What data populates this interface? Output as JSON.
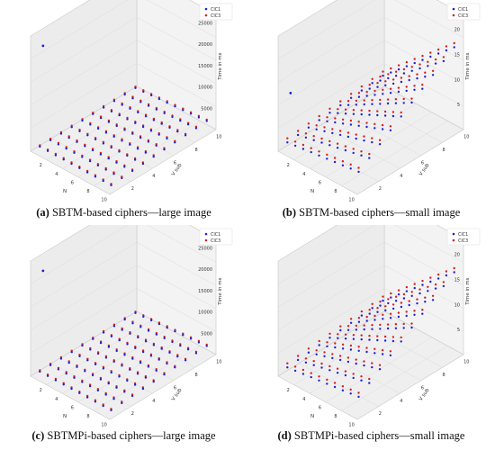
{
  "chart_data": [
    {
      "type": "scatter",
      "panel": "a",
      "caption_letter": "(a)",
      "caption_text": " SBTM-based ciphers—large image",
      "xlabel": "N",
      "ylabel": "V sub",
      "zlabel": "Time in ms",
      "xticks": [
        "2",
        "4",
        "6",
        "8",
        "10"
      ],
      "yticks": [
        "2",
        "4",
        "6",
        "8",
        "10"
      ],
      "zticks": [
        "5000",
        "10000",
        "15000",
        "20000",
        "25000"
      ],
      "zlim": [
        0,
        27000
      ],
      "legend_position": "top-right",
      "series": [
        {
          "name": "CIC1",
          "color": "#1f1fd6"
        },
        {
          "name": "CIC3",
          "color": "#d62020"
        }
      ],
      "outlier": {
        "x": 1,
        "y": 1,
        "z": 24000
      }
    },
    {
      "type": "scatter",
      "panel": "b",
      "caption_letter": "(b)",
      "caption_text": " SBTM-based ciphers—small image",
      "xlabel": "N",
      "ylabel": "V sub",
      "zlabel": "Time in ms",
      "xticks": [
        "2",
        "4",
        "6",
        "8",
        "10"
      ],
      "yticks": [
        "2",
        "4",
        "6",
        "8",
        "10"
      ],
      "zticks": [
        "5",
        "10",
        "15",
        "20"
      ],
      "zlim": [
        0,
        23
      ],
      "legend_position": "top-right",
      "series": [
        {
          "name": "CIC1",
          "color": "#1f1fd6"
        },
        {
          "name": "CIC3",
          "color": "#d62020"
        }
      ],
      "outlier": {
        "x": 1,
        "y": 1,
        "z": 11
      }
    },
    {
      "type": "scatter",
      "panel": "c",
      "caption_letter": "(c)",
      "caption_text": " SBTMPi-based ciphers—large image",
      "xlabel": "N",
      "ylabel": "V sub",
      "zlabel": "Time in ms",
      "xticks": [
        "2",
        "4",
        "6",
        "8",
        "10"
      ],
      "yticks": [
        "2",
        "4",
        "6",
        "8",
        "10"
      ],
      "zticks": [
        "5000",
        "10000",
        "15000",
        "20000",
        "25000"
      ],
      "zlim": [
        0,
        27000
      ],
      "legend_position": "top-right",
      "series": [
        {
          "name": "CIC1",
          "color": "#1f1fd6"
        },
        {
          "name": "CIC3",
          "color": "#d62020"
        }
      ],
      "outlier": {
        "x": 1,
        "y": 1,
        "z": 24000
      }
    },
    {
      "type": "scatter",
      "panel": "d",
      "caption_letter": "(d)",
      "caption_text": " SBTMPi-based ciphers—small image",
      "xlabel": "N",
      "ylabel": "V sub",
      "zlabel": "Time in ms",
      "xticks": [
        "2",
        "4",
        "6",
        "8",
        "10"
      ],
      "yticks": [
        "2",
        "4",
        "6",
        "8",
        "10"
      ],
      "zticks": [
        "5",
        "10",
        "15",
        "20"
      ],
      "zlim": [
        0,
        23
      ],
      "legend_position": "top-right",
      "series": [
        {
          "name": "CIC1",
          "color": "#1f1fd6"
        },
        {
          "name": "CIC3",
          "color": "#d62020"
        }
      ],
      "outlier": null
    }
  ]
}
